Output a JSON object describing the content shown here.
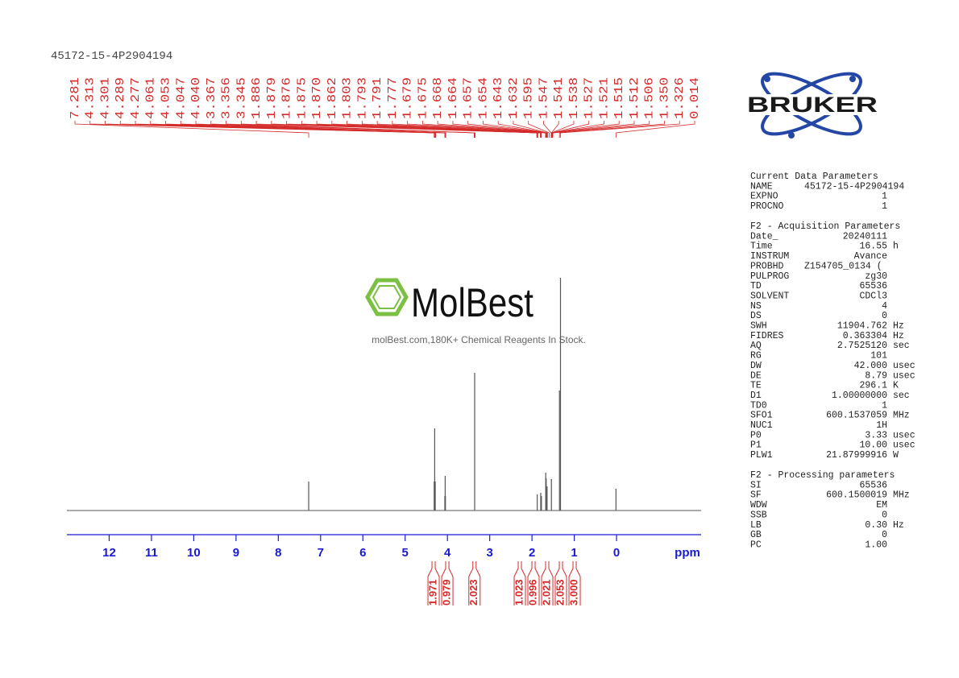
{
  "header": {
    "title": "45172-15-4P2904194"
  },
  "logo": {
    "text": "BRUKER"
  },
  "watermark": {
    "name": "MolBest",
    "tagline": "molBest.com,180K+ Chemical Reagents In Stock."
  },
  "chart_data": {
    "type": "spectrum",
    "x_label": "ppm",
    "xlim": [
      13,
      -2
    ],
    "xticks": [
      12,
      11,
      10,
      9,
      8,
      7,
      6,
      5,
      4,
      3,
      2,
      1,
      0
    ],
    "ylim": [
      0,
      300
    ],
    "color": "#555555",
    "axis_color": "#1a1ad0",
    "label_color": "#d42a2a",
    "peaks": {
      "x": [
        7.281,
        4.313,
        4.301,
        4.289,
        4.061,
        4.053,
        4.047,
        3.356,
        1.876,
        1.793,
        1.777,
        1.675,
        1.664,
        1.643,
        1.541,
        1.35,
        1.326,
        0.014
      ],
      "values": [
        36,
        36,
        102,
        36,
        18,
        43,
        18,
        171,
        20,
        22,
        18,
        47,
        40,
        30,
        39,
        149,
        289,
        27
      ]
    },
    "peak_list": {
      "x": [
        7.281,
        4.313,
        4.301,
        4.289,
        4.277,
        4.061,
        4.053,
        4.047,
        4.04,
        3.367,
        3.356,
        3.345,
        1.886,
        1.879,
        1.876,
        1.875,
        1.87,
        1.862,
        1.803,
        1.793,
        1.791,
        1.777,
        1.679,
        1.675,
        1.668,
        1.664,
        1.657,
        1.654,
        1.643,
        1.632,
        1.595,
        1.547,
        1.541,
        1.538,
        1.527,
        1.521,
        1.515,
        1.512,
        1.506,
        1.35,
        1.326,
        0.014
      ],
      "labels": [
        "7.281",
        "4.313",
        "4.301",
        "4.289",
        "4.277",
        "4.061",
        "4.053",
        "4.047",
        "4.040",
        "3.367",
        "3.356",
        "3.345",
        "1.886",
        "1.879",
        "1.876",
        "1.875",
        "1.870",
        "1.862",
        "1.803",
        "1.793",
        "1.791",
        "1.777",
        "1.679",
        "1.675",
        "1.668",
        "1.664",
        "1.657",
        "1.654",
        "1.643",
        "1.632",
        "1.595",
        "1.547",
        "1.541",
        "1.538",
        "1.527",
        "1.521",
        "1.515",
        "1.512",
        "1.506",
        "1.350",
        "1.326",
        "0.014"
      ]
    },
    "integrals": {
      "x": [
        4.28,
        4.05,
        3.36,
        1.88,
        1.79,
        1.67,
        1.53,
        1.33
      ],
      "values": [
        1.971,
        0.979,
        2.023,
        1.023,
        0.996,
        2.021,
        2.053,
        3.0
      ],
      "value_labels": [
        "1.971",
        "0.979",
        "2.023",
        "1.023",
        "0.996",
        "2.021",
        "2.053",
        "3.000"
      ]
    }
  },
  "parameters": {
    "sections": [
      {
        "title": "Current Data Parameters",
        "rows": [
          [
            "NAME",
            "45172-15-4P2904194"
          ],
          [
            "EXPNO",
            "1"
          ],
          [
            "PROCNO",
            "1"
          ]
        ]
      },
      {
        "title": "F2 - Acquisition Parameters",
        "rows": [
          [
            "Date_",
            "20240111"
          ],
          [
            "Time",
            "16.55",
            "h"
          ],
          [
            "INSTRUM",
            "Avance"
          ],
          [
            "PROBHD",
            "Z154705_0134 ("
          ],
          [
            "PULPROG",
            "zg30"
          ],
          [
            "TD",
            "65536"
          ],
          [
            "SOLVENT",
            "CDCl3"
          ],
          [
            "NS",
            "4"
          ],
          [
            "DS",
            "0"
          ],
          [
            "SWH",
            "11904.762",
            "Hz"
          ],
          [
            "FIDRES",
            "0.363304",
            "Hz"
          ],
          [
            "AQ",
            "2.7525120",
            "sec"
          ],
          [
            "RG",
            "101"
          ],
          [
            "DW",
            "42.000",
            "usec"
          ],
          [
            "DE",
            "8.79",
            "usec"
          ],
          [
            "TE",
            "296.1",
            "K"
          ],
          [
            "D1",
            "1.00000000",
            "sec"
          ],
          [
            "TD0",
            "1"
          ],
          [
            "SFO1",
            "600.1537059",
            "MHz"
          ],
          [
            "NUC1",
            "1H"
          ],
          [
            "P0",
            "3.33",
            "usec"
          ],
          [
            "P1",
            "10.00",
            "usec"
          ],
          [
            "PLW1",
            "21.87999916",
            "W"
          ]
        ]
      },
      {
        "title": "F2 - Processing parameters",
        "rows": [
          [
            "SI",
            "65536"
          ],
          [
            "SF",
            "600.1500019",
            "MHz"
          ],
          [
            "WDW",
            "EM"
          ],
          [
            "SSB",
            "0"
          ],
          [
            "LB",
            "0.30",
            "Hz"
          ],
          [
            "GB",
            "0"
          ],
          [
            "PC",
            "1.00"
          ]
        ]
      }
    ]
  }
}
